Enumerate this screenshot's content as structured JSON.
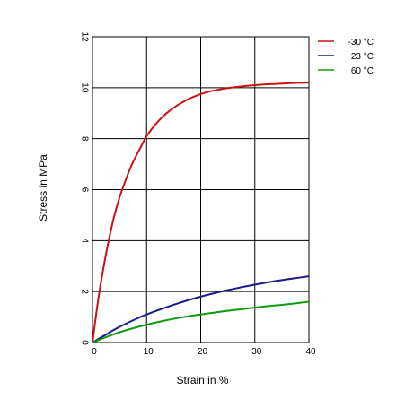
{
  "chart_data": {
    "type": "line",
    "title": "",
    "xlabel": "Strain in %",
    "ylabel": "Stress in MPa",
    "xlim": [
      0,
      40
    ],
    "ylim": [
      0,
      12
    ],
    "grid": true,
    "x_ticks": [
      0,
      10,
      20,
      30,
      40
    ],
    "x_tick_labels": [
      "0",
      "10",
      "20",
      "30",
      "40"
    ],
    "y_ticks": [
      0,
      2,
      4,
      6,
      8,
      10,
      12
    ],
    "y_tick_labels": [
      "0",
      "2",
      "4",
      "6",
      "8",
      "10",
      "12"
    ],
    "legend_position": "top-right",
    "series": [
      {
        "name": "-30 °C",
        "color": "#cc1111",
        "x": [
          0,
          1,
          2,
          3,
          4,
          5,
          6,
          7,
          8,
          9,
          10,
          12,
          14,
          16,
          18,
          20,
          22,
          24,
          26,
          28,
          30,
          32,
          34,
          36,
          38,
          40
        ],
        "y": [
          0,
          1.6,
          2.9,
          4.0,
          4.95,
          5.7,
          6.3,
          6.85,
          7.3,
          7.7,
          8.1,
          8.65,
          9.05,
          9.35,
          9.58,
          9.75,
          9.87,
          9.95,
          10.01,
          10.06,
          10.1,
          10.13,
          10.15,
          10.17,
          10.19,
          10.2
        ]
      },
      {
        "name": "23 °C",
        "color": "#1a1a8a",
        "x": [
          0,
          2,
          4,
          6,
          8,
          10,
          12,
          14,
          16,
          18,
          20,
          22,
          24,
          26,
          28,
          30,
          32,
          34,
          36,
          38,
          40
        ],
        "y": [
          0,
          0.25,
          0.5,
          0.72,
          0.92,
          1.1,
          1.26,
          1.41,
          1.55,
          1.68,
          1.8,
          1.91,
          2.01,
          2.1,
          2.19,
          2.27,
          2.35,
          2.42,
          2.48,
          2.54,
          2.6
        ]
      },
      {
        "name": "60 °C",
        "color": "#119911",
        "x": [
          0,
          2,
          4,
          6,
          8,
          10,
          12,
          14,
          16,
          18,
          20,
          22,
          24,
          26,
          28,
          30,
          32,
          34,
          36,
          38,
          40
        ],
        "y": [
          0,
          0.17,
          0.33,
          0.47,
          0.59,
          0.7,
          0.8,
          0.89,
          0.97,
          1.04,
          1.1,
          1.16,
          1.22,
          1.27,
          1.32,
          1.37,
          1.42,
          1.46,
          1.5,
          1.55,
          1.6
        ]
      }
    ]
  }
}
